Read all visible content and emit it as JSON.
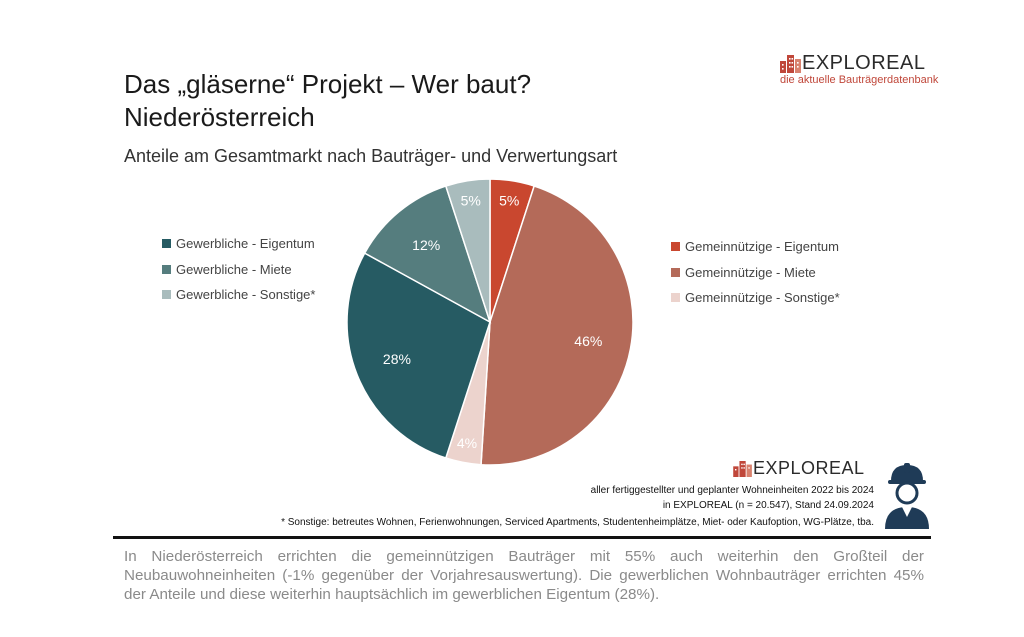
{
  "title_line1": "Das „gläserne“ Projekt – Wer baut?",
  "title_line2": "Niederösterreich",
  "subtitle": "Anteile am Gesamtmarkt nach Bauträger- und Verwertungsart",
  "logo": {
    "name": "EXPLOREAL",
    "tagline": "die aktuelle Bauträgerdatenbank",
    "accent_color": "#c0473a"
  },
  "chart_data": {
    "type": "pie",
    "title": "Anteile am Gesamtmarkt nach Bauträger- und Verwertungsart",
    "slices": [
      {
        "label": "Gemeinnützige - Eigentum",
        "value": 5,
        "display": "5%",
        "color": "#c9472f"
      },
      {
        "label": "Gemeinnützige - Miete",
        "value": 46,
        "display": "46%",
        "color": "#b46a59"
      },
      {
        "label": "Gemeinnützige - Sonstige*",
        "value": 4,
        "display": "4%",
        "color": "#ecd3cd"
      },
      {
        "label": "Gewerbliche - Eigentum",
        "value": 28,
        "display": "28%",
        "color": "#265b63"
      },
      {
        "label": "Gewerbliche - Miete",
        "value": 12,
        "display": "12%",
        "color": "#557d7e"
      },
      {
        "label": "Gewerbliche - Sonstige*",
        "value": 5,
        "display": "5%",
        "color": "#a9bcbd"
      }
    ],
    "legend_left": [
      "Gewerbliche - Eigentum",
      "Gewerbliche - Miete",
      "Gewerbliche - Sonstige*"
    ],
    "legend_right": [
      "Gemeinnützige - Eigentum",
      "Gemeinnützige - Miete",
      "Gemeinnützige - Sonstige*"
    ]
  },
  "note_line1": "aller fertiggestellter und geplanter Wohneinheiten 2022 bis 2024",
  "note_line2": "in EXPLOREAL (n = 20.547), Stand 24.09.2024",
  "footnote": "* Sonstige: betreutes Wohnen, Ferienwohnungen, Serviced Apartments, Studentenheimplätze, Miet- oder Kaufoption, WG-Plätze, tba.",
  "summary": "In Niederösterreich errichten die gemeinnützigen Bauträger mit 55% auch weiterhin den Großteil der Neubauwohneinheiten (-1% gegenüber der Vorjahresauswertung). Die gewerblichen Wohnbauträger errichten 45% der Anteile und diese weiterhin hauptsächlich im gewerblichen Eigentum (28%).",
  "icons": {
    "logo": "building-logo-icon",
    "worker": "construction-worker-icon"
  }
}
